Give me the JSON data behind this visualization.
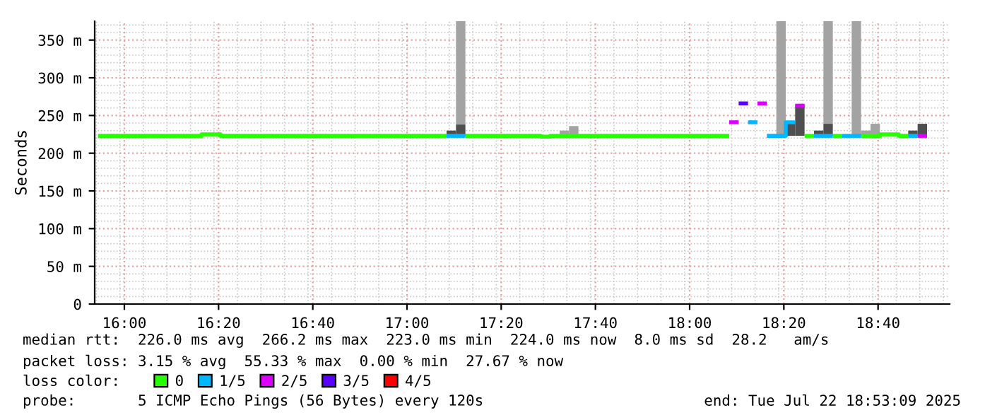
{
  "chart_data": {
    "type": "line",
    "ylabel": "Seconds",
    "series": [
      {
        "type": "bar",
        "color": "#a3a3a3",
        "x": [
          17.1733,
          17.54,
          17.5733,
          18.3067,
          18.4733,
          18.5733,
          18.6067,
          18.64
        ],
        "base": [
          238,
          223,
          223,
          223,
          239,
          223,
          223,
          223
        ],
        "values": [
          137,
          7,
          13,
          152,
          136,
          152,
          7,
          16
        ]
      },
      {
        "type": "bar",
        "color": "#4f4f4f",
        "x": [
          17.14,
          17.1733,
          18.34,
          18.3733,
          18.44,
          18.4733,
          18.7733,
          18.8067
        ],
        "base": [
          223,
          223,
          223,
          223,
          223,
          223,
          223,
          223
        ],
        "values": [
          7,
          15,
          18,
          40,
          7,
          16,
          7,
          16
        ]
      },
      {
        "name": "0",
        "color": "#26ff00",
        "x": [
          15.9067,
          16.2733,
          16.2733,
          16.34,
          16.34,
          17.14
        ],
        "values": [
          223,
          223,
          225,
          225,
          223,
          223
        ]
      },
      {
        "color": "#26ff00",
        "x": [
          17.2067,
          17.4733,
          17.4733,
          17.5067,
          17.5067,
          18.14
        ],
        "values": [
          223,
          223,
          222,
          222,
          223,
          223
        ]
      },
      {
        "color": "#26ff00",
        "x": [
          18.4067,
          18.44
        ],
        "values": [
          223,
          223
        ]
      },
      {
        "color": "#26ff00",
        "x": [
          18.5067,
          18.54
        ],
        "values": [
          223,
          223
        ]
      },
      {
        "color": "#26ff00",
        "x": [
          18.6067,
          18.6733,
          18.6733,
          18.74,
          18.74,
          18.7733
        ],
        "values": [
          223,
          223,
          225,
          225,
          223,
          223
        ]
      },
      {
        "name": "1/5",
        "color": "#00b8ff",
        "x": [
          17.14,
          17.2067
        ],
        "values": [
          223,
          223
        ]
      },
      {
        "color": "#00b8ff",
        "x": [
          18.2067,
          18.24
        ],
        "values": [
          241,
          241
        ]
      },
      {
        "color": "#00b8ff",
        "x": [
          18.2733,
          18.34,
          18.34,
          18.3733
        ],
        "values": [
          223,
          223,
          241,
          241
        ]
      },
      {
        "color": "#00b8ff",
        "x": [
          18.44,
          18.5067
        ],
        "values": [
          223,
          223
        ]
      },
      {
        "color": "#00b8ff",
        "x": [
          18.54,
          18.6067
        ],
        "values": [
          223,
          223
        ]
      },
      {
        "color": "#00b8ff",
        "x": [
          18.7733,
          18.8067
        ],
        "values": [
          223,
          223
        ]
      },
      {
        "name": "2/5",
        "color": "#dd00ff",
        "x": [
          18.14,
          18.1733
        ],
        "values": [
          241,
          241
        ]
      },
      {
        "color": "#dd00ff",
        "x": [
          18.24,
          18.2733
        ],
        "values": [
          266,
          266
        ]
      },
      {
        "color": "#dd00ff",
        "x": [
          18.3733,
          18.4067
        ],
        "values": [
          263,
          263
        ]
      },
      {
        "color": "#dd00ff",
        "x": [
          18.8067,
          18.84
        ],
        "values": [
          223,
          223
        ]
      },
      {
        "name": "3/5",
        "color": "#5a00ff",
        "x": [
          18.1733,
          18.2067
        ],
        "values": [
          266,
          266
        ]
      },
      {
        "name": "4/5",
        "color": "#ff0000"
      }
    ],
    "xlim": [
      15.895,
      18.92
    ],
    "xticks": [
      {
        "value": 16.0,
        "label": "16:00"
      },
      {
        "value": 16.3333,
        "label": "16:20"
      },
      {
        "value": 16.6667,
        "label": "16:40"
      },
      {
        "value": 17.0,
        "label": "17:00"
      },
      {
        "value": 17.3333,
        "label": "17:20"
      },
      {
        "value": 17.6667,
        "label": "17:40"
      },
      {
        "value": 18.0,
        "label": "18:00"
      },
      {
        "value": 18.3333,
        "label": "18:20"
      },
      {
        "value": 18.6667,
        "label": "18:40"
      }
    ],
    "ylim": [
      0,
      375
    ],
    "yticks": [
      0,
      {
        "value": 50,
        "label": "50 m"
      },
      {
        "value": 100,
        "label": "100 m"
      },
      {
        "value": 150,
        "label": "150 m"
      },
      {
        "value": 200,
        "label": "200 m"
      },
      {
        "value": 250,
        "label": "250 m"
      },
      {
        "value": 300,
        "label": "300 m"
      },
      {
        "value": 350,
        "label": "350 m"
      }
    ],
    "grid": true,
    "legend": "bottom",
    "legend_title": "loss color:",
    "annotations": [
      "median rtt:  226.0 ms avg  266.2 ms max  223.0 ms min  224.0 ms now  8.0 ms sd  28.2   am/s",
      "packet loss: 3.15 % avg  55.33 % max  0.00 % min  27.67 % now",
      "probe:       5 ICMP Echo Pings (56 Bytes) every 120s",
      "end: Tue Jul 22 18:53:09 2025"
    ]
  }
}
